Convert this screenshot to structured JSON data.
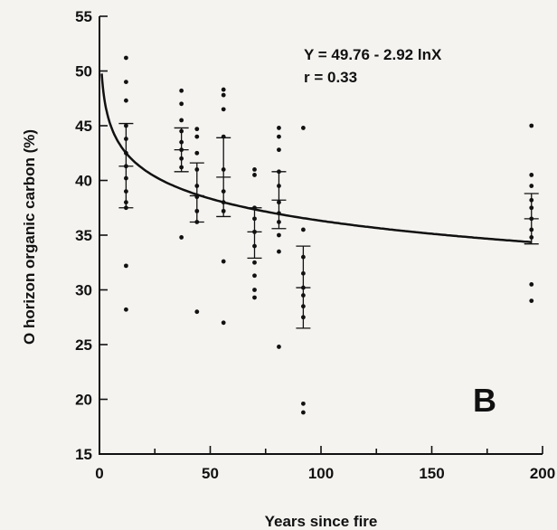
{
  "chart_data": {
    "type": "scatter",
    "panel_label": "B",
    "xlabel": "Years since fire",
    "ylabel": "O horizon organic carbon (%)",
    "xlim": [
      0,
      200
    ],
    "ylim": [
      15,
      55
    ],
    "x_ticks": [
      0,
      50,
      100,
      150,
      200
    ],
    "x_tick_labels": [
      "0",
      "50",
      "100",
      "150",
      "200"
    ],
    "y_ticks": [
      15,
      20,
      25,
      30,
      35,
      40,
      45,
      50,
      55
    ],
    "y_tick_labels": [
      "15",
      "20",
      "25",
      "30",
      "35",
      "40",
      "45",
      "50",
      "55"
    ],
    "grid": false,
    "annotation": {
      "equation": "Y = 49.76 - 2.92 lnX",
      "r_value": "r = 0.33"
    },
    "fit": {
      "intercept": 49.76,
      "slope_ln": -2.92
    },
    "points": [
      {
        "x": 12,
        "y": 51.2
      },
      {
        "x": 12,
        "y": 49.0
      },
      {
        "x": 12,
        "y": 47.3
      },
      {
        "x": 12,
        "y": 45.0
      },
      {
        "x": 12,
        "y": 43.8
      },
      {
        "x": 12,
        "y": 42.5
      },
      {
        "x": 12,
        "y": 41.3
      },
      {
        "x": 12,
        "y": 40.2
      },
      {
        "x": 12,
        "y": 39.0
      },
      {
        "x": 12,
        "y": 38.0
      },
      {
        "x": 12,
        "y": 37.5
      },
      {
        "x": 12,
        "y": 32.2
      },
      {
        "x": 12,
        "y": 28.2
      },
      {
        "x": 37,
        "y": 48.2
      },
      {
        "x": 37,
        "y": 47.0
      },
      {
        "x": 37,
        "y": 45.5
      },
      {
        "x": 37,
        "y": 44.5
      },
      {
        "x": 37,
        "y": 43.5
      },
      {
        "x": 37,
        "y": 42.8
      },
      {
        "x": 37,
        "y": 42.0
      },
      {
        "x": 37,
        "y": 41.2
      },
      {
        "x": 37,
        "y": 34.8
      },
      {
        "x": 44,
        "y": 44.7
      },
      {
        "x": 44,
        "y": 44.0
      },
      {
        "x": 44,
        "y": 42.5
      },
      {
        "x": 44,
        "y": 41.0
      },
      {
        "x": 44,
        "y": 39.5
      },
      {
        "x": 44,
        "y": 38.5
      },
      {
        "x": 44,
        "y": 37.2
      },
      {
        "x": 44,
        "y": 36.2
      },
      {
        "x": 44,
        "y": 28.0
      },
      {
        "x": 56,
        "y": 48.3
      },
      {
        "x": 56,
        "y": 47.8
      },
      {
        "x": 56,
        "y": 46.5
      },
      {
        "x": 56,
        "y": 44.0
      },
      {
        "x": 56,
        "y": 41.0
      },
      {
        "x": 56,
        "y": 39.0
      },
      {
        "x": 56,
        "y": 38.0
      },
      {
        "x": 56,
        "y": 37.2
      },
      {
        "x": 56,
        "y": 32.6
      },
      {
        "x": 56,
        "y": 27.0
      },
      {
        "x": 70,
        "y": 41.0
      },
      {
        "x": 70,
        "y": 40.5
      },
      {
        "x": 70,
        "y": 37.5
      },
      {
        "x": 70,
        "y": 36.5
      },
      {
        "x": 70,
        "y": 35.3
      },
      {
        "x": 70,
        "y": 34.0
      },
      {
        "x": 70,
        "y": 32.5
      },
      {
        "x": 70,
        "y": 31.3
      },
      {
        "x": 70,
        "y": 30.0
      },
      {
        "x": 70,
        "y": 29.3
      },
      {
        "x": 81,
        "y": 44.8
      },
      {
        "x": 81,
        "y": 44.0
      },
      {
        "x": 81,
        "y": 42.8
      },
      {
        "x": 81,
        "y": 40.8
      },
      {
        "x": 81,
        "y": 39.5
      },
      {
        "x": 81,
        "y": 38.0
      },
      {
        "x": 81,
        "y": 37.0
      },
      {
        "x": 81,
        "y": 36.2
      },
      {
        "x": 81,
        "y": 35.0
      },
      {
        "x": 81,
        "y": 33.5
      },
      {
        "x": 81,
        "y": 24.8
      },
      {
        "x": 92,
        "y": 44.8
      },
      {
        "x": 92,
        "y": 35.5
      },
      {
        "x": 92,
        "y": 33.0
      },
      {
        "x": 92,
        "y": 31.5
      },
      {
        "x": 92,
        "y": 30.2
      },
      {
        "x": 92,
        "y": 29.5
      },
      {
        "x": 92,
        "y": 28.5
      },
      {
        "x": 92,
        "y": 27.5
      },
      {
        "x": 92,
        "y": 19.6
      },
      {
        "x": 92,
        "y": 18.8
      },
      {
        "x": 195,
        "y": 45.0
      },
      {
        "x": 195,
        "y": 40.5
      },
      {
        "x": 195,
        "y": 39.5
      },
      {
        "x": 195,
        "y": 38.2
      },
      {
        "x": 195,
        "y": 37.5
      },
      {
        "x": 195,
        "y": 36.5
      },
      {
        "x": 195,
        "y": 35.5
      },
      {
        "x": 195,
        "y": 34.8
      },
      {
        "x": 195,
        "y": 30.5
      },
      {
        "x": 195,
        "y": 29.0
      }
    ],
    "error_bars": [
      {
        "x": 12,
        "mean": 41.3,
        "low": 37.5,
        "high": 45.2
      },
      {
        "x": 37,
        "mean": 42.8,
        "low": 40.8,
        "high": 44.8
      },
      {
        "x": 44,
        "mean": 38.6,
        "low": 36.2,
        "high": 41.6
      },
      {
        "x": 56,
        "mean": 40.3,
        "low": 36.7,
        "high": 43.9
      },
      {
        "x": 70,
        "mean": 35.3,
        "low": 32.9,
        "high": 37.5
      },
      {
        "x": 81,
        "mean": 38.2,
        "low": 35.6,
        "high": 40.8
      },
      {
        "x": 92,
        "mean": 30.2,
        "low": 26.5,
        "high": 34.0
      },
      {
        "x": 195,
        "mean": 36.5,
        "low": 34.2,
        "high": 38.8
      }
    ]
  }
}
